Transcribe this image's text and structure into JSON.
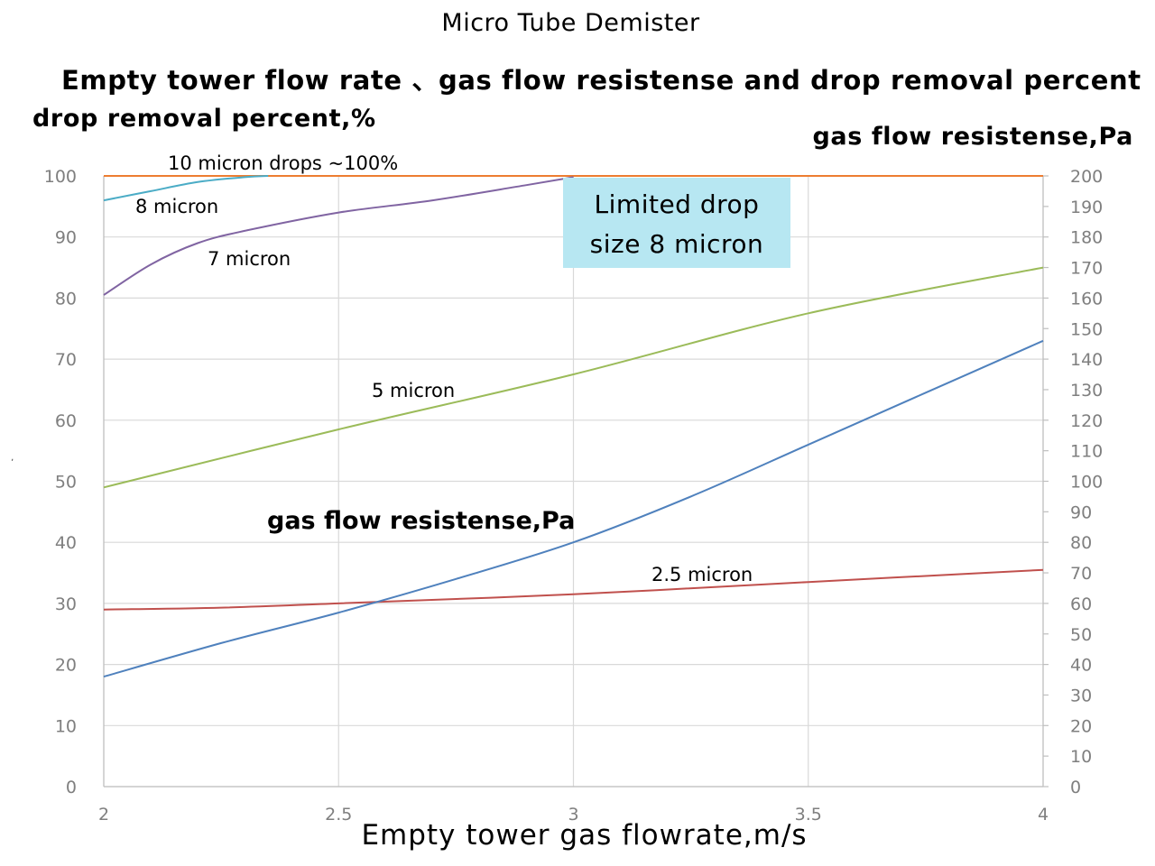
{
  "title": "Micro Tube Demister",
  "subtitle": "Empty tower flow rate 、gas flow resistense and drop removal percent",
  "left_axis_label": "drop removal percent,%",
  "right_axis_label": "gas flow resistense,Pa",
  "x_axis_label": "Empty tower gas flowrate,m/s",
  "stray_mark": "ʼ",
  "box": {
    "line1": "Limited drop",
    "line2": "size 8 micron",
    "color": "#b7e7f2"
  },
  "chart_data": {
    "type": "line",
    "title": "Micro Tube Demister",
    "subtitle": "Empty tower flow rate 、gas flow resistense and drop removal percent",
    "xlabel": "Empty tower gas flowrate,m/s",
    "ylabel": "drop removal percent,%",
    "y2label": "gas flow resistense,Pa",
    "xlim": [
      2,
      4
    ],
    "ylim": [
      0,
      100
    ],
    "y2lim": [
      0,
      200
    ],
    "xticks": [
      2,
      2.5,
      3,
      3.5,
      4
    ],
    "xtick_labels": [
      "2",
      "2.5",
      "3",
      "3.5",
      "4"
    ],
    "yticks": [
      0,
      10,
      20,
      30,
      40,
      50,
      60,
      70,
      80,
      90,
      100
    ],
    "y2ticks": [
      0,
      10,
      20,
      30,
      40,
      50,
      60,
      70,
      80,
      90,
      100,
      110,
      120,
      130,
      140,
      150,
      160,
      170,
      180,
      190,
      200
    ],
    "grid": true,
    "series": [
      {
        "name": "10 micron drops ~100%",
        "axis": "left",
        "color": "#ed7d31",
        "x": [
          2,
          2.5,
          3,
          3.5,
          4
        ],
        "y": [
          100,
          100,
          100,
          100,
          100
        ]
      },
      {
        "name": "8 micron",
        "axis": "left",
        "color": "#4bacc6",
        "x": [
          2,
          2.1,
          2.2,
          2.3,
          2.35
        ],
        "y": [
          96,
          97.5,
          99,
          99.8,
          100
        ]
      },
      {
        "name": "7 micron",
        "axis": "left",
        "color": "#8064a2",
        "x": [
          2,
          2.1,
          2.2,
          2.3,
          2.5,
          2.7,
          2.9,
          3
        ],
        "y": [
          80.5,
          85.5,
          89,
          91,
          94,
          96,
          98.5,
          99.8
        ]
      },
      {
        "name": "5 micron",
        "axis": "left",
        "color": "#9bbb59",
        "x": [
          2,
          2.5,
          3,
          3.5,
          4
        ],
        "y": [
          49,
          58.5,
          67.5,
          77.5,
          85
        ]
      },
      {
        "name": "2.5 micron",
        "axis": "left",
        "color": "#c0504d",
        "x": [
          2,
          2.25,
          2.5,
          3,
          3.5,
          4
        ],
        "y": [
          29,
          29.3,
          30,
          31.5,
          33.5,
          35.5
        ]
      },
      {
        "name": "gas flow resistense,Pa",
        "axis": "right",
        "color": "#4f81bd",
        "x": [
          2,
          2.25,
          2.5,
          2.75,
          3,
          3.25,
          3.5,
          3.75,
          4
        ],
        "y": [
          36,
          47,
          57,
          68,
          80,
          95,
          112,
          129,
          146
        ]
      }
    ],
    "annotations": [
      {
        "text": "10 micron drops ~100%"
      },
      {
        "text": "8 micron"
      },
      {
        "text": "7 micron"
      },
      {
        "text": "5 micron"
      },
      {
        "text": "gas flow resistense,Pa"
      },
      {
        "text": "2.5 micron"
      }
    ]
  }
}
